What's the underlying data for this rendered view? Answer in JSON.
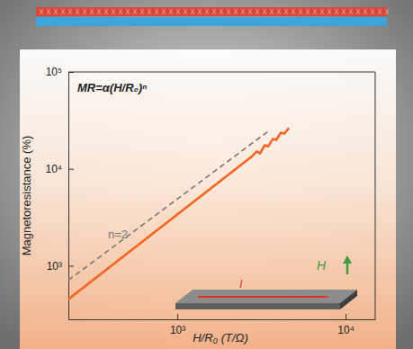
{
  "chart_data": {
    "type": "line",
    "x_label": "H/R₀ (T/Ω)",
    "y_label": "Magnetoresistance (%)",
    "log": true,
    "xlim": [
      225,
      15000
    ],
    "ylim": [
      280,
      100000
    ],
    "xticks": [
      {
        "value": 1000,
        "label": "10³"
      },
      {
        "value": 10000,
        "label": "10⁴"
      }
    ],
    "yticks": [
      {
        "value": 1000,
        "label": "10³"
      },
      {
        "value": 10000,
        "label": "10⁴"
      },
      {
        "value": 100000,
        "label": "10⁵"
      }
    ],
    "series": [
      {
        "color": "#f26522",
        "line_style": "solid",
        "x": [
          225,
          2780,
          2960,
          3100,
          3300,
          3470,
          3690,
          3870,
          4120,
          4330,
          4600
        ],
        "values": [
          451,
          13500,
          15100,
          14400,
          17500,
          17100,
          20300,
          19900,
          23600,
          23100,
          26400
        ]
      },
      {
        "color": "#777777",
        "line_style": "dashed",
        "x": [
          225,
          3550
        ],
        "values": [
          709,
          25200
        ]
      }
    ],
    "annotations": [
      "MR=α(H/R₀)ⁿ",
      "n=2",
      "I",
      "H"
    ]
  }
}
